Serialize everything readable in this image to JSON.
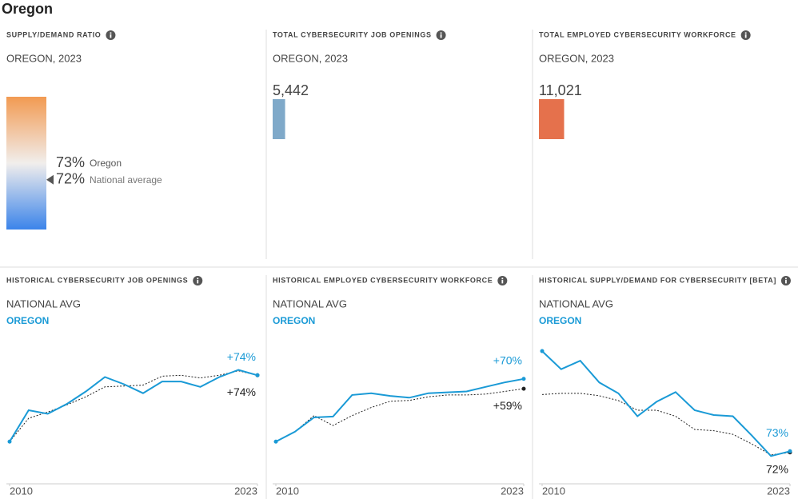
{
  "page_title": "Oregon",
  "chart_data": [
    {
      "type": "gauge",
      "title": "SUPPLY/DEMAND RATIO",
      "subtitle": "OREGON, 2023",
      "series": [
        {
          "name": "Oregon",
          "values": [
            73
          ],
          "value_labels": [
            "73%"
          ]
        },
        {
          "name": "National average",
          "values": [
            72
          ],
          "value_labels": [
            "72%"
          ]
        }
      ],
      "ylim": [
        69,
        77
      ],
      "colors": [
        "#f29a52",
        "#f1eeec",
        "#3b84ea"
      ]
    },
    {
      "type": "hbar",
      "title": "TOTAL CYBERSECURITY JOB OPENINGS",
      "subtitle": "OREGON, 2023",
      "values": [
        5442
      ],
      "value_labels": [
        "5,442"
      ],
      "color": "#7fa9c9",
      "xlim": [
        0,
        35000
      ]
    },
    {
      "type": "hbar",
      "title": "TOTAL EMPLOYED CYBERSECURITY WORKFORCE",
      "subtitle": "OREGON, 2023",
      "values": [
        11021
      ],
      "value_labels": [
        "11,021"
      ],
      "color": "#e5714c",
      "xlim": [
        0,
        35000
      ]
    },
    {
      "type": "line",
      "title": "HISTORICAL CYBERSECURITY JOB OPENINGS",
      "x": [
        2010,
        2011,
        2012,
        2013,
        2014,
        2015,
        2016,
        2017,
        2018,
        2019,
        2020,
        2021,
        2022,
        2023
      ],
      "series": [
        {
          "name": "NATIONAL AVG",
          "color": "#222222",
          "dashed": true,
          "values": [
            0,
            26,
            33,
            41,
            50,
            61,
            62,
            63,
            73,
            74,
            71,
            74,
            79,
            74
          ],
          "value_labels": [
            null,
            null,
            null,
            null,
            null,
            null,
            null,
            null,
            null,
            null,
            null,
            null,
            null,
            "+74%"
          ]
        },
        {
          "name": "OREGON",
          "color": "#1a9ad6",
          "dashed": false,
          "values": [
            0,
            35,
            31,
            42,
            56,
            72,
            64,
            54,
            67,
            67,
            61,
            72,
            80,
            74
          ],
          "value_labels": [
            null,
            null,
            null,
            null,
            null,
            null,
            null,
            null,
            null,
            null,
            null,
            null,
            null,
            "+74%"
          ]
        }
      ],
      "xlim": [
        2010,
        2023
      ],
      "xticks": [
        2010,
        2023
      ],
      "ylim": [
        -47,
        109
      ]
    },
    {
      "type": "line",
      "title": "HISTORICAL EMPLOYED CYBERSECURITY WORKFORCE",
      "x": [
        2010,
        2011,
        2012,
        2013,
        2014,
        2015,
        2016,
        2017,
        2018,
        2019,
        2020,
        2021,
        2022,
        2023
      ],
      "series": [
        {
          "name": "NATIONAL AVG",
          "color": "#222222",
          "dashed": true,
          "values": [
            0,
            11,
            29,
            18,
            29,
            38,
            45,
            46,
            50,
            52,
            52,
            53,
            56,
            59
          ],
          "value_labels": [
            null,
            null,
            null,
            null,
            null,
            null,
            null,
            null,
            null,
            null,
            null,
            null,
            null,
            "+59%"
          ]
        },
        {
          "name": "OREGON",
          "color": "#1a9ad6",
          "dashed": false,
          "values": [
            0,
            11,
            27,
            28,
            52,
            54,
            51,
            49,
            54,
            55,
            56,
            61,
            66,
            70
          ],
          "value_labels": [
            null,
            null,
            null,
            null,
            null,
            null,
            null,
            null,
            null,
            null,
            null,
            null,
            null,
            "+70%"
          ]
        }
      ],
      "xlim": [
        2010,
        2023
      ],
      "xticks": [
        2010,
        2023
      ],
      "ylim": [
        -47,
        109
      ]
    },
    {
      "type": "line",
      "title": "HISTORICAL SUPPLY/DEMAND FOR CYBERSECURITY [BETA]",
      "x": [
        2010,
        2011,
        2012,
        2013,
        2014,
        2015,
        2016,
        2017,
        2018,
        2019,
        2020,
        2021,
        2022,
        2023
      ],
      "series": [
        {
          "name": "NATIONAL AVG",
          "color": "#222222",
          "dashed": true,
          "values": [
            120,
            121,
            121,
            119,
            115,
            107,
            107,
            102,
            91,
            90,
            87,
            79,
            70,
            72
          ],
          "value_labels": [
            null,
            null,
            null,
            null,
            null,
            null,
            null,
            null,
            null,
            null,
            null,
            null,
            null,
            "72%"
          ]
        },
        {
          "name": "OREGON",
          "color": "#1a9ad6",
          "dashed": false,
          "values": [
            156,
            141,
            148,
            130,
            121,
            102,
            114,
            122,
            107,
            103,
            102,
            86,
            69,
            73
          ],
          "value_labels": [
            null,
            null,
            null,
            null,
            null,
            null,
            null,
            null,
            null,
            null,
            null,
            null,
            null,
            "73%"
          ]
        }
      ],
      "xlim": [
        2010,
        2023
      ],
      "xticks": [
        2010,
        2023
      ],
      "ylim": [
        46,
        162
      ]
    }
  ]
}
